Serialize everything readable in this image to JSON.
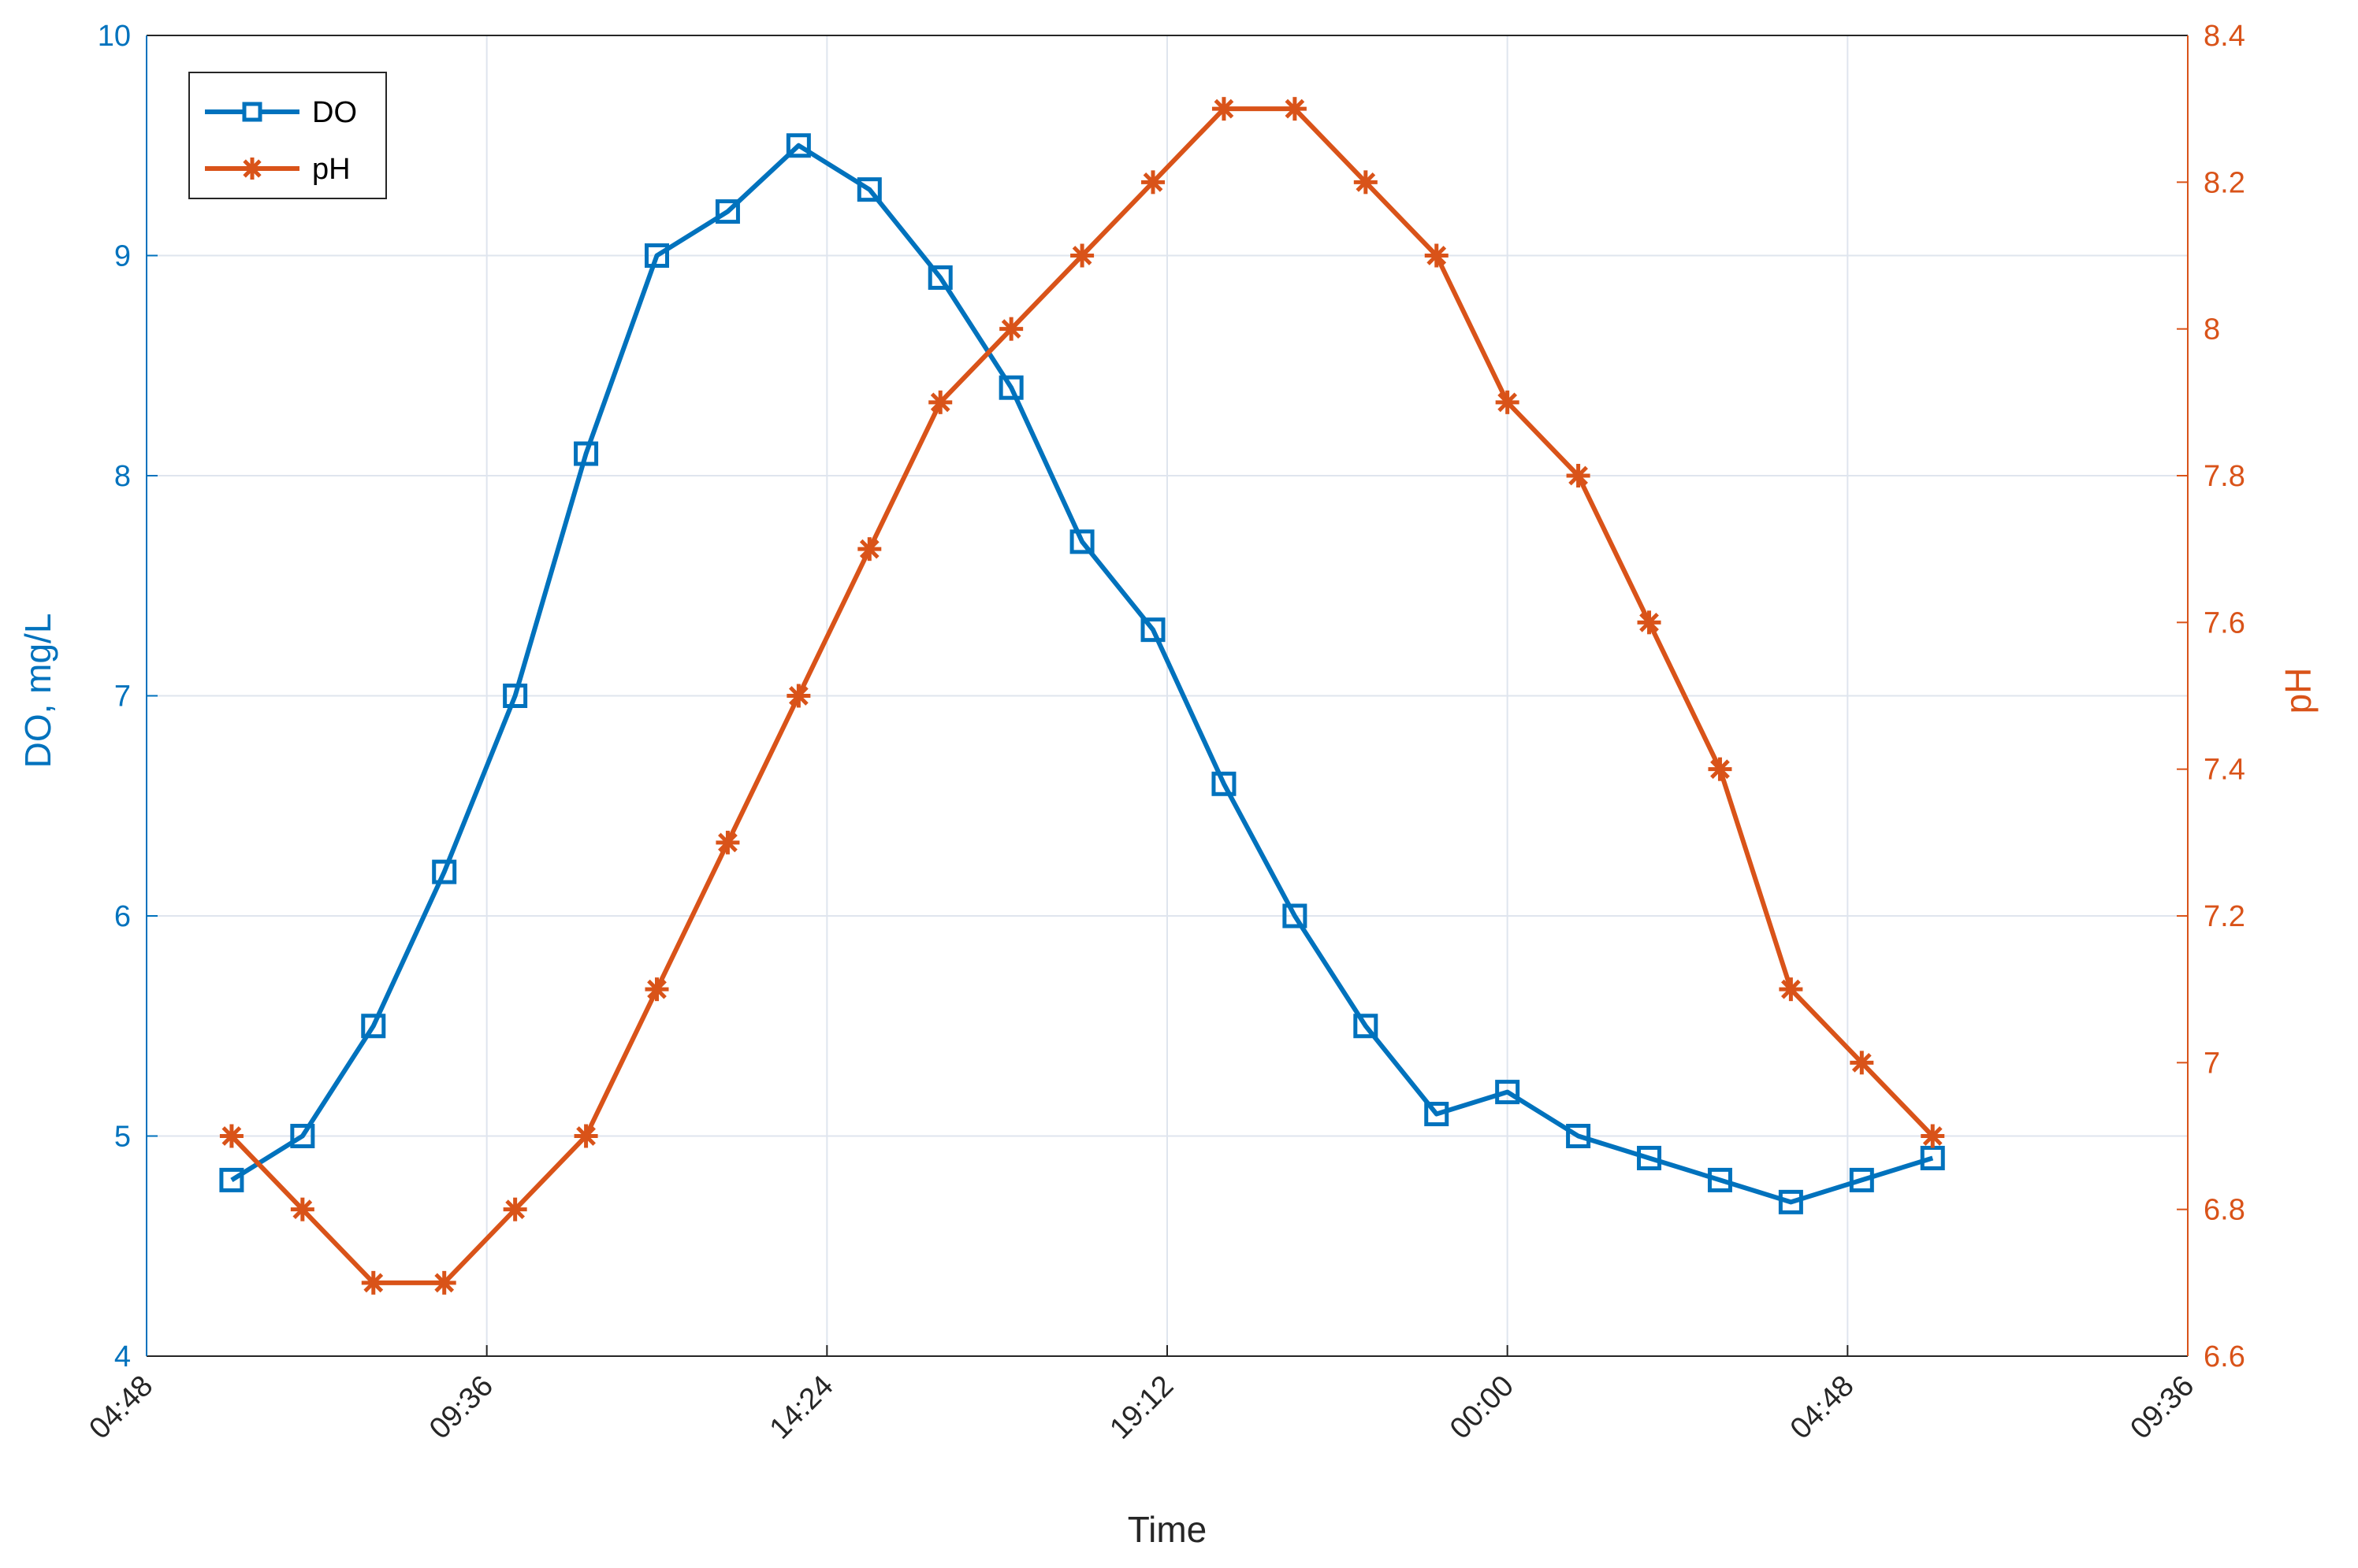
{
  "colors": {
    "do_series": "#0072BD",
    "ph_series": "#D95319",
    "grid": "#dfe5ee",
    "axis": "#262626"
  },
  "chart_data": {
    "type": "line",
    "title": "",
    "xlabel": "Time",
    "ylabel_left": "DO, mg/L",
    "ylabel_right": "pH",
    "x_ticks": [
      "04:48",
      "09:36",
      "14:24",
      "19:12",
      "00:00",
      "04:48",
      "09:36"
    ],
    "x_tick_hours": [
      4.8,
      9.6,
      14.4,
      19.2,
      24.0,
      28.8,
      33.6
    ],
    "xlim_hours": [
      4.8,
      33.6
    ],
    "ylim_left": [
      4,
      10
    ],
    "yticks_left": [
      "4",
      "5",
      "6",
      "7",
      "8",
      "9",
      "10"
    ],
    "ylim_right": [
      6.6,
      8.4
    ],
    "yticks_right": [
      "6.6",
      "6.8",
      "7",
      "7.2",
      "7.4",
      "7.6",
      "7.8",
      "8",
      "8.2",
      "8.4"
    ],
    "grid": true,
    "legend_position": "top-left",
    "x_time_hours": [
      6,
      7,
      8,
      9,
      10,
      11,
      12,
      13,
      14,
      15,
      16,
      17,
      18,
      19,
      20,
      21,
      22,
      23,
      24,
      25,
      26,
      27,
      28,
      29,
      30
    ],
    "series": [
      {
        "name": "DO",
        "axis": "left",
        "marker": "square",
        "values": [
          4.8,
          5.0,
          5.5,
          6.2,
          7.0,
          8.1,
          9.0,
          9.2,
          9.5,
          9.3,
          8.9,
          8.4,
          7.7,
          7.3,
          6.6,
          6.0,
          5.5,
          5.1,
          5.2,
          5.0,
          4.9,
          4.8,
          4.7,
          4.8,
          4.9
        ]
      },
      {
        "name": "pH",
        "axis": "right",
        "marker": "asterisk",
        "values": [
          6.9,
          6.8,
          6.7,
          6.7,
          6.8,
          6.9,
          7.1,
          7.3,
          7.5,
          7.7,
          7.9,
          8.0,
          8.1,
          8.2,
          8.3,
          8.3,
          8.2,
          8.1,
          7.9,
          7.8,
          7.6,
          7.4,
          7.1,
          7.0,
          6.9
        ]
      }
    ]
  }
}
